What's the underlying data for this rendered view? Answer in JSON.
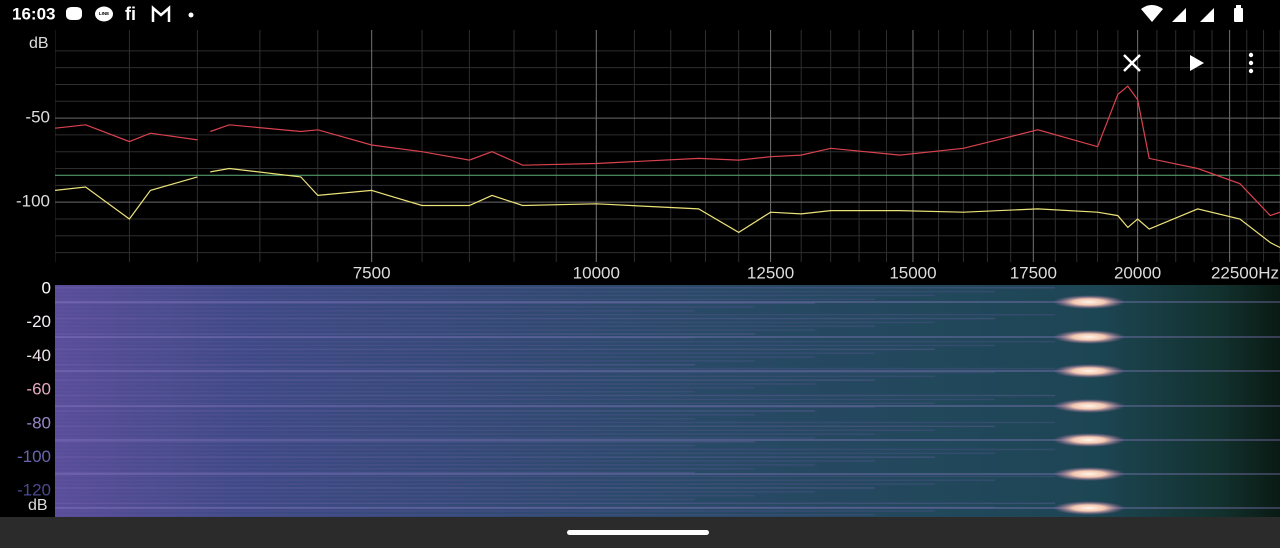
{
  "status_bar": {
    "time": "16:03",
    "line_icon": "LINE",
    "fi_icon": "fi"
  },
  "chart_data": {
    "type": "line",
    "x_scale": "log",
    "y_unit": "dB",
    "grid": true,
    "x": [
      5000,
      5200,
      5500,
      5650,
      6000,
      6050,
      6100,
      6250,
      6850,
      7000,
      7500,
      8000,
      8500,
      8750,
      9100,
      10000,
      11400,
      12000,
      12500,
      13000,
      13500,
      14750,
      16000,
      17600,
      19000,
      19500,
      19750,
      20000,
      20300,
      21600,
      22800,
      23700,
      24000
    ],
    "series": [
      {
        "color": "#d8424e",
        "values": [
          -56,
          -54,
          -64,
          -59,
          -63,
          null,
          -58,
          -54,
          -58,
          -57,
          -66,
          -70,
          -75,
          -70,
          -78,
          -77,
          -74,
          -75,
          -73,
          -72,
          -68,
          -72,
          -68,
          -57,
          -67,
          -36,
          -31,
          -39,
          -74,
          -80,
          -89,
          -108,
          -106
        ]
      },
      {
        "color": "#ece27a",
        "values": [
          -93,
          -91,
          -110,
          -93,
          -85,
          null,
          -82,
          -80,
          -85,
          -96,
          -93,
          -102,
          -102,
          -96,
          -102,
          -101,
          -104,
          -118,
          -106,
          -107,
          -105,
          -105,
          -106,
          -104,
          -106,
          -108,
          -115,
          -110,
          -116,
          -104,
          -110,
          -124,
          -127
        ]
      }
    ],
    "xlim": [
      5000,
      24000
    ],
    "ylim": [
      -135,
      0
    ],
    "xticks": [
      7500,
      10000,
      12500,
      15000,
      17500,
      20000,
      {
        "value": 22500,
        "label": "22500Hz"
      }
    ],
    "yticks": [
      -50,
      -100
    ],
    "xminor": [
      5000,
      5500,
      6000,
      6500,
      7000,
      7500,
      8000,
      8500,
      9000,
      9500,
      10000,
      10500,
      11000,
      11500,
      12000,
      12500,
      13000,
      13500,
      14000,
      14500,
      15000,
      15500,
      16000,
      16500,
      17000,
      17500,
      18000,
      18500,
      19000,
      19500,
      20000,
      20500,
      21000,
      21500,
      22000,
      22500,
      23000,
      23500,
      24000
    ],
    "yminor": [
      -10,
      -20,
      -30,
      -40,
      -60,
      -70,
      -80,
      -90,
      -110,
      -120,
      -130
    ],
    "level_line": {
      "value": -84,
      "color": "#5fae7a"
    }
  },
  "spectrogram": {
    "yticks": [
      0,
      -20,
      -40,
      -60,
      -80,
      -100,
      -120
    ],
    "unit": "dB"
  }
}
